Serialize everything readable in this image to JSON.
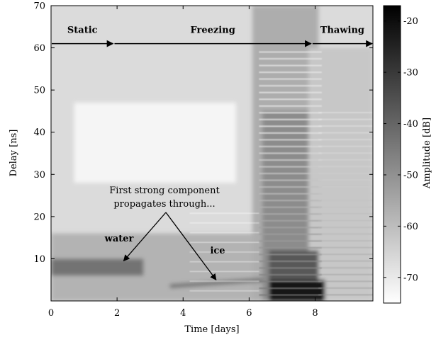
{
  "chart_data": {
    "type": "heatmap",
    "title": "",
    "xlabel": "Time [days]",
    "ylabel": "Delay [ns]",
    "xlim": [
      0,
      9.75
    ],
    "ylim": [
      0,
      70
    ],
    "x_ticks": [
      0,
      2,
      4,
      6,
      8
    ],
    "x_tick_labels": [
      "0",
      "2",
      "4",
      "6",
      "8"
    ],
    "y_ticks": [
      10,
      20,
      30,
      40,
      50,
      60,
      70
    ],
    "y_tick_labels": [
      "10",
      "20",
      "30",
      "40",
      "50",
      "60",
      "70"
    ],
    "colorbar": {
      "label": "Amplitude [dB]",
      "range": [
        -75,
        -17
      ],
      "ticks": [
        -70,
        -60,
        -50,
        -40,
        -30,
        -20
      ],
      "tick_labels": [
        "-70",
        "-60",
        "-50",
        "-40",
        "-30",
        "-20"
      ],
      "colormap": "gray_reversed"
    },
    "phases": [
      {
        "label": "Static",
        "x_start": 0,
        "x_end": 1.9
      },
      {
        "label": "Freezing",
        "x_start": 1.9,
        "x_end": 7.9
      },
      {
        "label": "Thawing",
        "x_start": 7.9,
        "x_end": 9.75
      }
    ],
    "phase_arrow_y": 61,
    "annotation_text": [
      "First strong component",
      "propagates through..."
    ],
    "annotation_labels": [
      {
        "label": "water",
        "target_x": 2.2,
        "target_y": 9.5
      },
      {
        "label": "ice",
        "target_x": 5.0,
        "target_y": 5.0
      }
    ]
  },
  "colors": {
    "axis": "#000000",
    "background": "#ffffff",
    "max_intensity": "#000000"
  }
}
